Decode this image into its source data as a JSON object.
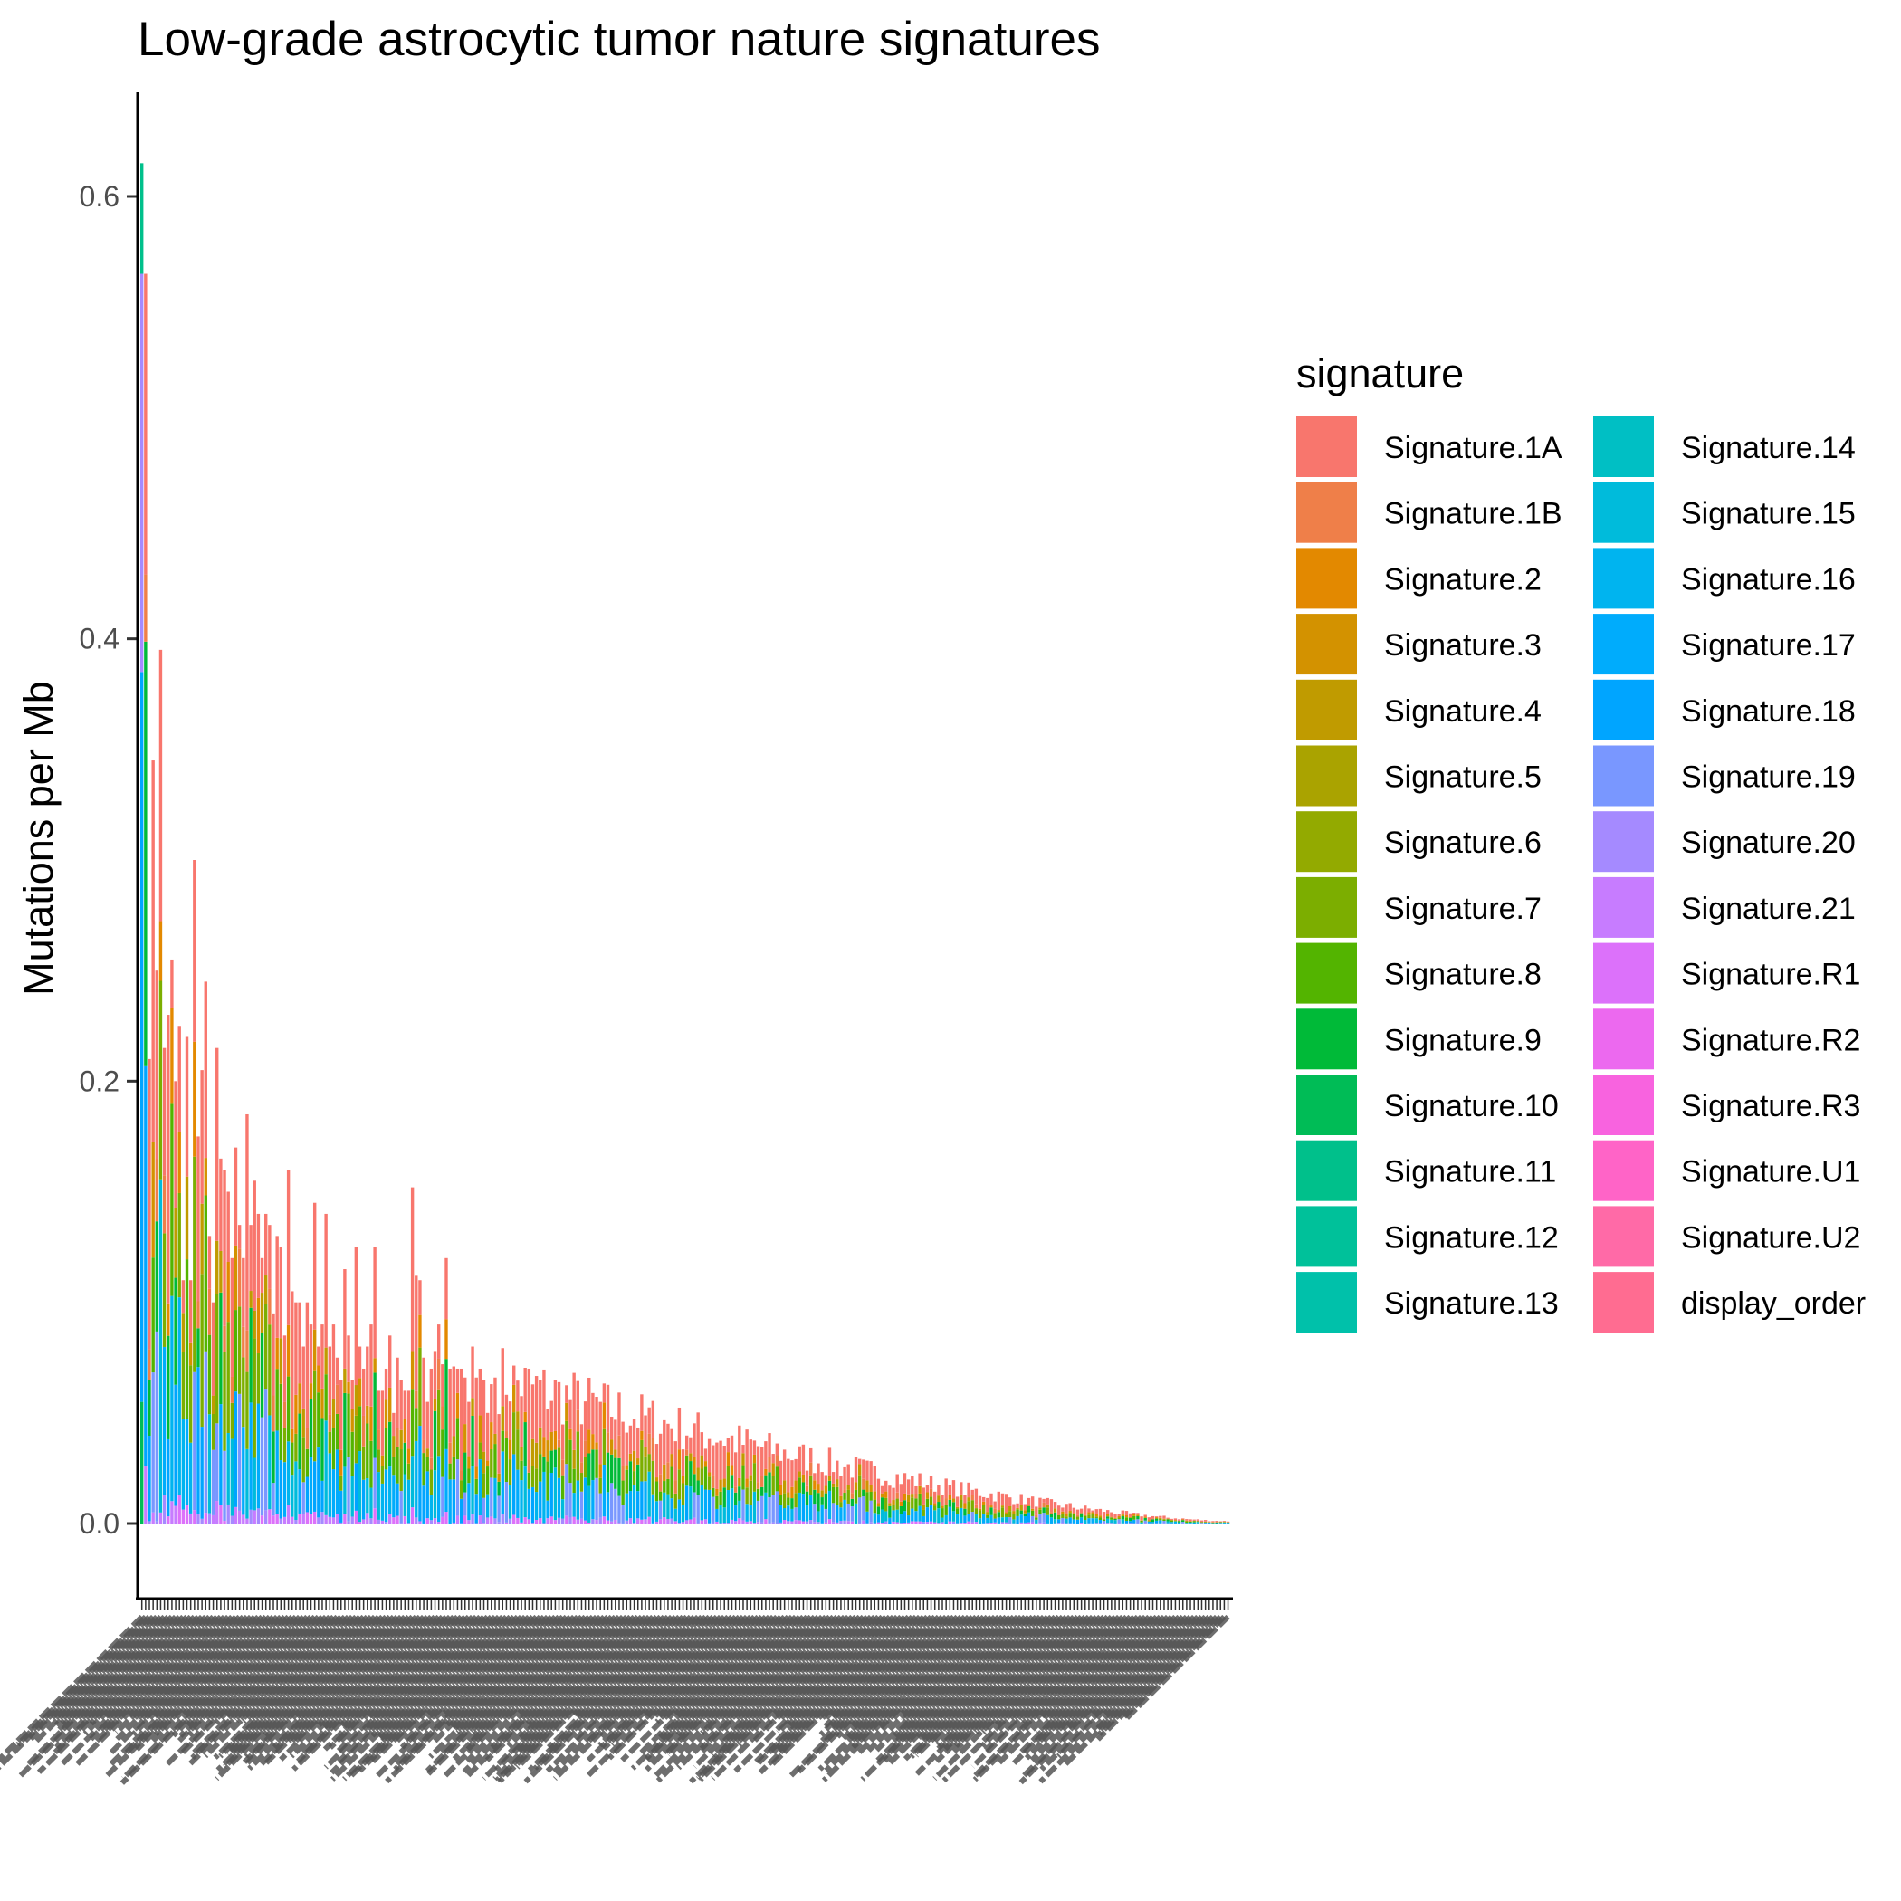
{
  "chart_data": {
    "type": "bar",
    "stacked": true,
    "title": "Low-grade astrocytic tumor nature signatures",
    "xlabel": "",
    "ylabel": "Mutations per Mb",
    "ylim": [
      -0.03,
      0.65
    ],
    "yticks": [
      0.0,
      0.2,
      0.4,
      0.6
    ],
    "ytick_labels": [
      "0.0",
      "0.2",
      "0.4",
      "0.6"
    ],
    "grid": false,
    "legend": {
      "title": "signature",
      "position": "right",
      "columns": 2
    },
    "sample_count": 290,
    "sample_labels_legible": false,
    "signatures": [
      {
        "name": "Signature.1A",
        "color": "#F8766D"
      },
      {
        "name": "Signature.1B",
        "color": "#EF7F49"
      },
      {
        "name": "Signature.2",
        "color": "#E38900"
      },
      {
        "name": "Signature.3",
        "color": "#D39200"
      },
      {
        "name": "Signature.4",
        "color": "#C09B00"
      },
      {
        "name": "Signature.5",
        "color": "#AAA300"
      },
      {
        "name": "Signature.6",
        "color": "#93AA00"
      },
      {
        "name": "Signature.7",
        "color": "#7CAE00"
      },
      {
        "name": "Signature.8",
        "color": "#53B400"
      },
      {
        "name": "Signature.9",
        "color": "#00BA38"
      },
      {
        "name": "Signature.10",
        "color": "#00BC56"
      },
      {
        "name": "Signature.11",
        "color": "#00C08B"
      },
      {
        "name": "Signature.12",
        "color": "#00C19A"
      },
      {
        "name": "Signature.13",
        "color": "#00C1AA"
      },
      {
        "name": "Signature.14",
        "color": "#00BFC4"
      },
      {
        "name": "Signature.15",
        "color": "#00BBDB"
      },
      {
        "name": "Signature.16",
        "color": "#00B4EF"
      },
      {
        "name": "Signature.17",
        "color": "#00ACFC"
      },
      {
        "name": "Signature.18",
        "color": "#00A5FF"
      },
      {
        "name": "Signature.19",
        "color": "#7997FF"
      },
      {
        "name": "Signature.20",
        "color": "#A58AFF"
      },
      {
        "name": "Signature.21",
        "color": "#C77CFF"
      },
      {
        "name": "Signature.R1",
        "color": "#DC71FA"
      },
      {
        "name": "Signature.R2",
        "color": "#EC69EF"
      },
      {
        "name": "Signature.R3",
        "color": "#F863DF"
      },
      {
        "name": "Signature.U1",
        "color": "#FF64C7"
      },
      {
        "name": "Signature.U2",
        "color": "#FF6AA7"
      },
      {
        "name": "display_order",
        "color": "#FF6C91"
      }
    ],
    "top_totals": [
      0.615,
      0.565,
      0.21,
      0.345,
      0.25,
      0.395,
      0.215,
      0.23,
      0.255,
      0.2,
      0.225,
      0.11,
      0.22,
      0.11,
      0.3,
      0.175,
      0.205,
      0.245,
      0.13,
      0.1,
      0.215,
      0.165,
      0.16,
      0.15,
      0.12,
      0.17,
      0.135,
      0.12,
      0.185,
      0.135,
      0.155,
      0.14,
      0.12,
      0.14,
      0.135,
      0.095,
      0.13,
      0.125,
      0.085,
      0.16,
      0.105,
      0.1,
      0.1,
      0.08,
      0.1,
      0.09,
      0.145,
      0.08,
      0.09,
      0.14,
      0.08,
      0.09,
      0.075,
      0.065,
      0.115,
      0.085,
      0.065,
      0.125,
      0.08,
      0.07,
      0.08,
      0.09,
      0.125,
      0.06,
      0.06,
      0.07,
      0.085,
      0.05,
      0.075,
      0.065,
      0.06,
      0.06,
      0.152,
      0.112,
      0.11,
      0.075,
      0.055,
      0.07,
      0.078,
      0.09,
      0.072,
      0.12,
      0.07,
      0.071,
      0.07,
      0.07,
      0.066,
      0.055,
      0.08,
      0.066,
      0.07,
      0.065,
      0.05,
      0.063,
      0.066
    ]
  }
}
